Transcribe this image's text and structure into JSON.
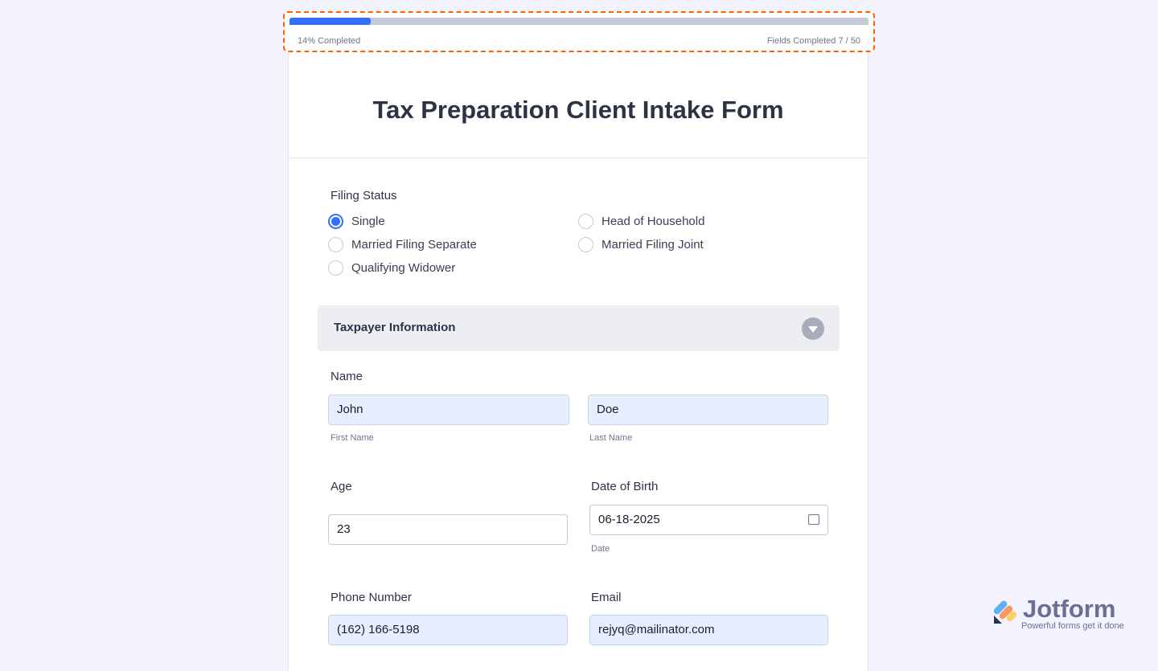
{
  "progress": {
    "percent": 14,
    "completed_label": "14%  Completed",
    "fields_label": "Fields Completed  7 / 50"
  },
  "form_title": "Tax Preparation Client Intake Form",
  "filing_status": {
    "label": "Filing Status",
    "options": [
      "Single",
      "Married Filing Separate",
      "Qualifying Widower",
      "Head of Household",
      "Married Filing Joint"
    ],
    "selected": "Single"
  },
  "section": {
    "title": "Taxpayer Information"
  },
  "name": {
    "label": "Name",
    "first": "John",
    "first_sub": "First Name",
    "last": "Doe",
    "last_sub": "Last Name"
  },
  "age": {
    "label": "Age",
    "value": "23"
  },
  "dob": {
    "label": "Date of Birth",
    "value": "06-18-2025",
    "sub": "Date"
  },
  "phone": {
    "label": "Phone Number",
    "value": "(162) 166-5198"
  },
  "email": {
    "label": "Email",
    "value": "rejyq@mailinator.com"
  },
  "brand": {
    "name": "Jotform",
    "tagline": "Powerful forms get it done"
  },
  "colors": {
    "accent": "#3370ff",
    "highlight": "#ff6100"
  }
}
